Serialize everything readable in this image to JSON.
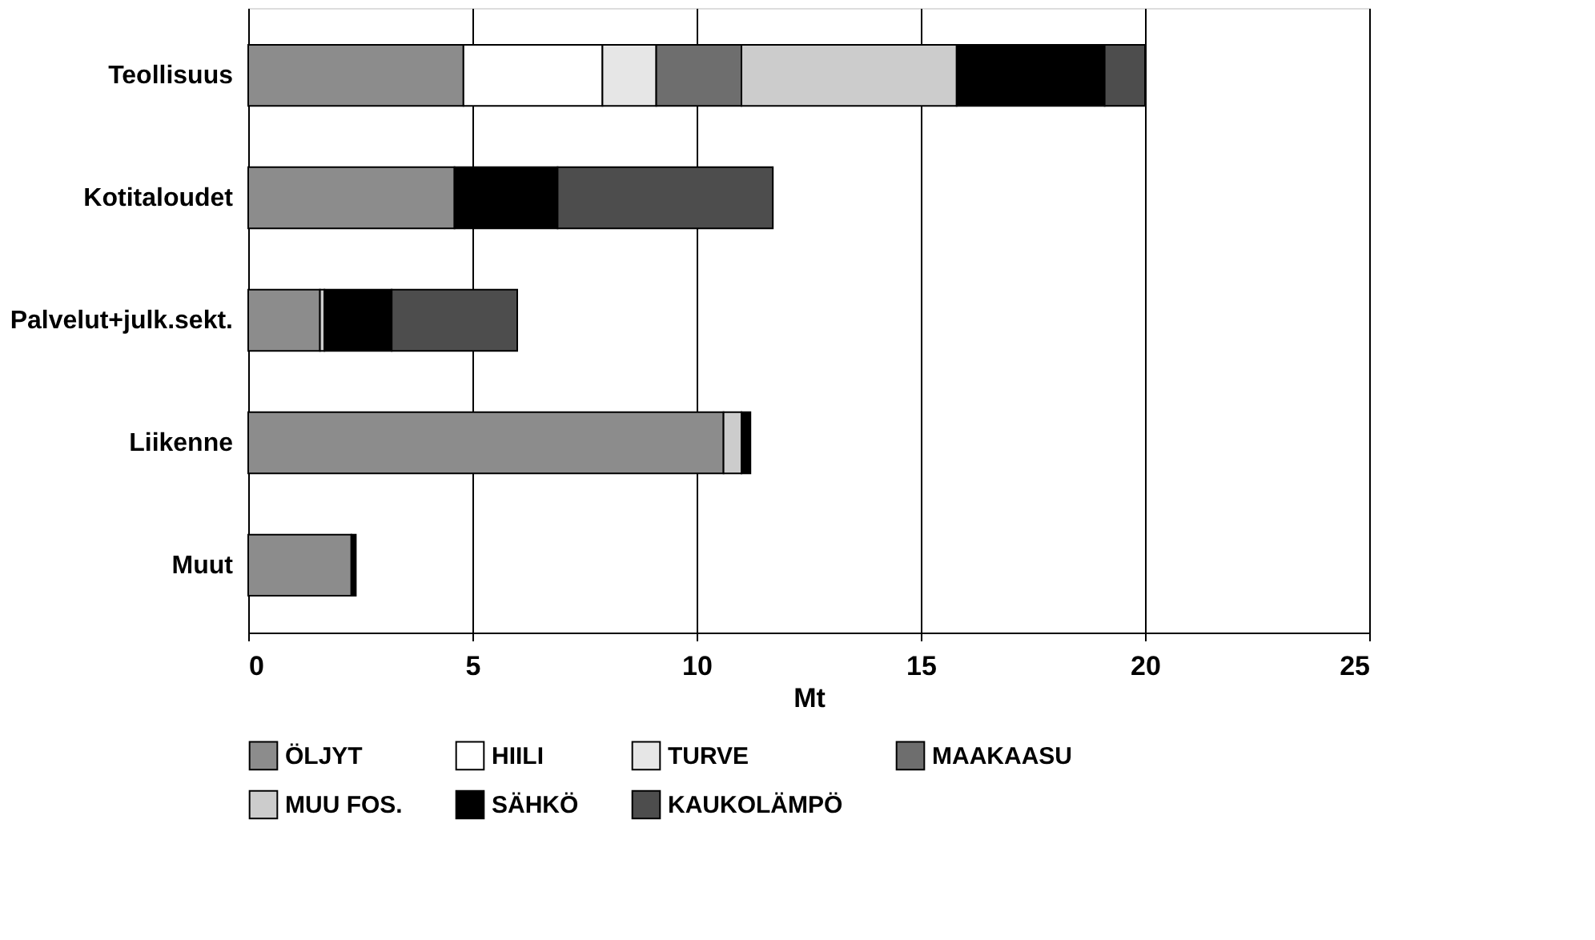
{
  "chart_data": {
    "type": "bar",
    "orientation": "horizontal",
    "stacked": true,
    "xlabel": "Mt",
    "categories": [
      "Teollisuus",
      "Kotitaloudet",
      "Palvelut+julk.sekt.",
      "Liikenne",
      "Muut"
    ],
    "series": [
      {
        "name": "ÖLJYT",
        "color": "#8c8c8c",
        "values": [
          4.8,
          4.6,
          1.6,
          10.6,
          2.3
        ]
      },
      {
        "name": "HIILI",
        "color": "#ffffff",
        "values": [
          3.1,
          null,
          null,
          null,
          null
        ]
      },
      {
        "name": "TURVE",
        "color": "#e6e6e6",
        "values": [
          1.2,
          null,
          null,
          null,
          null
        ]
      },
      {
        "name": "MAAKAASU",
        "color": "#6e6e6e",
        "values": [
          1.9,
          null,
          null,
          null,
          null
        ]
      },
      {
        "name": "MUU FOS.",
        "color": "#cccccc",
        "values": [
          4.8,
          null,
          0.1,
          0.4,
          null
        ]
      },
      {
        "name": "SÄHKÖ",
        "color": "#000000",
        "values": [
          3.3,
          2.3,
          1.5,
          0.2,
          0.1
        ]
      },
      {
        "name": "KAUKOLÄMPÖ",
        "color": "#4d4d4d",
        "values": [
          0.9,
          4.8,
          2.8,
          null,
          null
        ]
      }
    ],
    "xlim": [
      0,
      25
    ],
    "xticks": [
      0,
      5,
      10,
      15,
      20,
      25
    ],
    "grid": "x",
    "legend": "bottom"
  }
}
